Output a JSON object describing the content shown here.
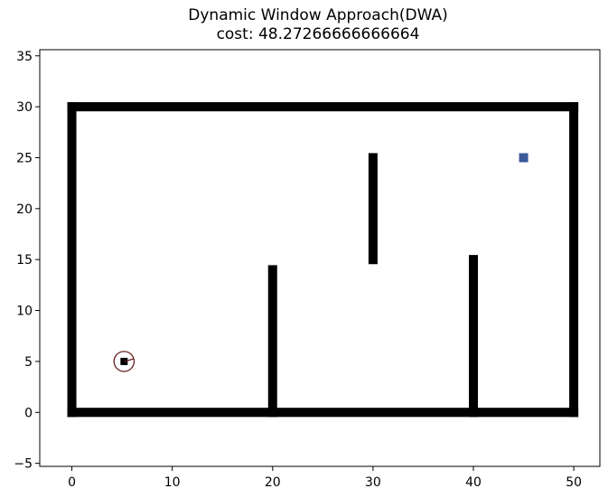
{
  "chart_data": {
    "type": "scatter",
    "title": "Dynamic Window Approach(DWA)",
    "subtitle": "cost: 48.27266666666664",
    "xlabel": "",
    "ylabel": "",
    "xlim": [
      -3.2,
      52.6
    ],
    "ylim": [
      -5.3,
      35.6
    ],
    "xticks": [
      0,
      10,
      20,
      30,
      40,
      50
    ],
    "xtick_labels": [
      "0",
      "10",
      "20",
      "30",
      "40",
      "50"
    ],
    "yticks": [
      -5,
      0,
      5,
      10,
      15,
      20,
      25,
      30,
      35
    ],
    "ytick_labels": [
      "−5",
      "0",
      "5",
      "10",
      "15",
      "20",
      "25",
      "30",
      "35"
    ],
    "grid": false,
    "obstacles": {
      "color": "#000000",
      "walls": [
        {
          "x": [
            0,
            50
          ],
          "y": [
            0,
            0
          ]
        },
        {
          "x": [
            0,
            50
          ],
          "y": [
            30,
            30
          ]
        },
        {
          "x": [
            0,
            0
          ],
          "y": [
            0,
            30
          ]
        },
        {
          "x": [
            50,
            50
          ],
          "y": [
            0,
            30
          ]
        },
        {
          "x": [
            20,
            20
          ],
          "y": [
            0,
            14
          ]
        },
        {
          "x": [
            30,
            30
          ],
          "y": [
            15,
            25
          ]
        },
        {
          "x": [
            40,
            40
          ],
          "y": [
            0,
            15
          ]
        }
      ]
    },
    "goal": {
      "x": 45,
      "y": 25,
      "color": "#3b5998"
    },
    "robot": {
      "x": 5.2,
      "y": 5,
      "radius": 1.0,
      "heading_deg": 15,
      "color": "#5a1010"
    }
  }
}
